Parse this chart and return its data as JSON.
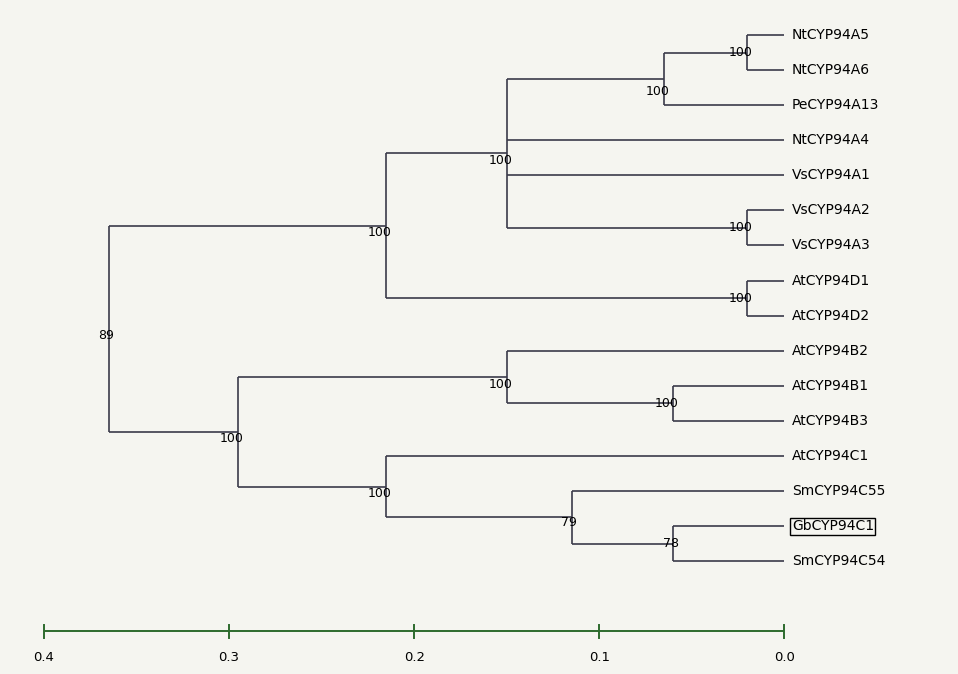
{
  "taxa": [
    "NtCYP94A5",
    "NtCYP94A6",
    "PeCYP94A13",
    "NtCYP94A4",
    "VsCYP94A1",
    "VsCYP94A2",
    "VsCYP94A3",
    "AtCYP94D1",
    "AtCYP94D2",
    "AtCYP94B2",
    "AtCYP94B1",
    "AtCYP94B3",
    "AtCYP94C1",
    "SmCYP94C55",
    "GbCYP94C1",
    "SmCYP94C54"
  ],
  "boxed_taxon": "GbCYP94C1",
  "line_color": "#3a3a4a",
  "scale_color": "#2d6b2d",
  "bg_color": "#f5f5f0",
  "scale_ticks": [
    0.4,
    0.3,
    0.2,
    0.1,
    0.0
  ],
  "label_fontsize": 10,
  "boot_fontsize": 9
}
